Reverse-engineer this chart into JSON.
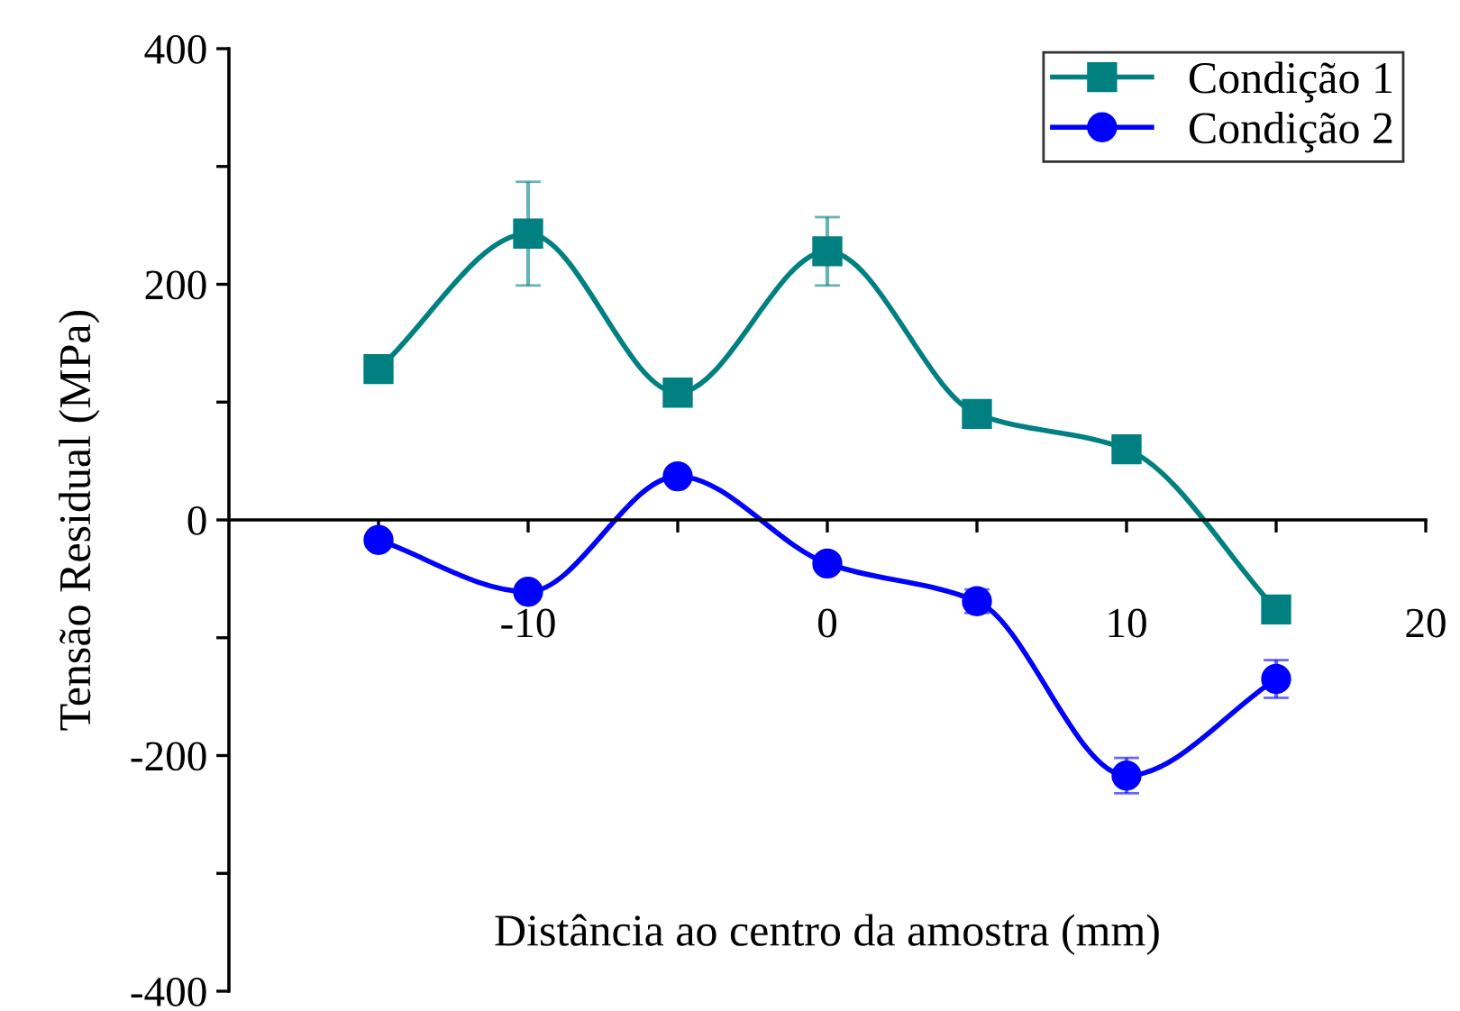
{
  "chart_data": {
    "type": "line",
    "xlabel": "Distância ao centro da amostra (mm)",
    "ylabel": "Tensão Residual (MPa)",
    "x": [
      -15,
      -10,
      -5,
      0,
      5,
      10,
      15
    ],
    "series": [
      {
        "name": "Condição 1",
        "color": "#008080",
        "marker": "square",
        "values": [
          128,
          243,
          108,
          228,
          90,
          60,
          -76
        ],
        "errors": [
          null,
          44,
          null,
          29,
          null,
          null,
          null
        ]
      },
      {
        "name": "Condição 2",
        "color": "#0000ff",
        "marker": "circle",
        "values": [
          -17,
          -61,
          37,
          -37,
          -69,
          -217,
          -135
        ],
        "errors": [
          null,
          null,
          null,
          null,
          10,
          15,
          16
        ]
      }
    ],
    "xlim": [
      -20,
      20
    ],
    "ylim": [
      -400,
      400
    ],
    "xticks": [
      {
        "value": -15,
        "label": null
      },
      -10,
      {
        "value": -5,
        "label": null
      },
      0,
      {
        "value": 5,
        "label": null
      },
      10,
      {
        "value": 15,
        "label": null
      },
      20
    ],
    "yticks": [
      -400,
      {
        "value": -300,
        "label": null
      },
      -200,
      {
        "value": -100,
        "label": null
      },
      0,
      {
        "value": 100,
        "label": null
      },
      200,
      {
        "value": 300,
        "label": null
      },
      400
    ],
    "legend": "top right",
    "grid": false,
    "line_style": "solid"
  }
}
